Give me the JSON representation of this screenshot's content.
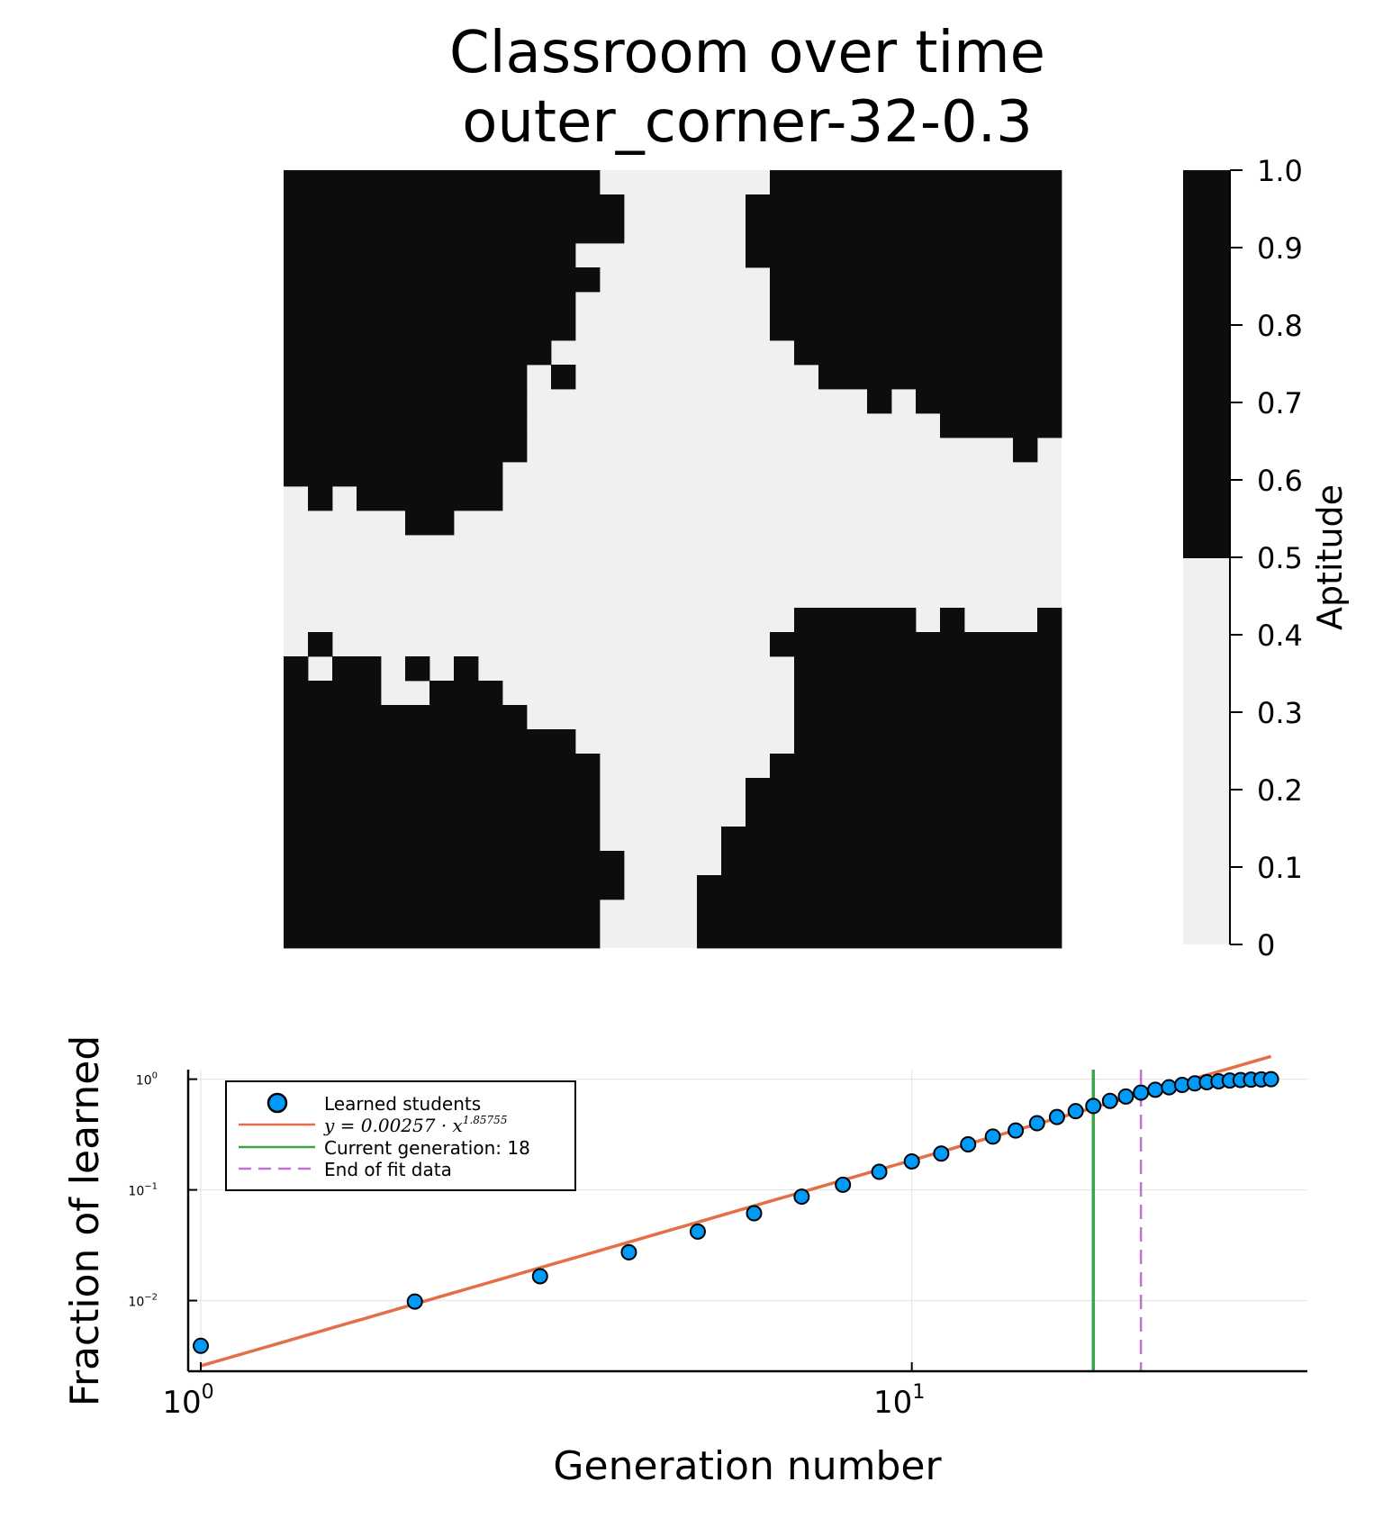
{
  "chart_data": [
    {
      "type": "heatmap",
      "title": "Classroom over time",
      "subtitle": "outer_corner-32-0.3",
      "grid_size": 32,
      "row_order": "top-to-bottom",
      "colors": {
        "low": "#f0f0f0",
        "high": "#0d0d0d",
        "threshold": 0.5
      },
      "colorbar": {
        "label": "Aptitude",
        "range": [
          0,
          1
        ],
        "ticks": [
          "0",
          "0.1",
          "0.2",
          "0.3",
          "0.4",
          "0.5",
          "0.6",
          "0.7",
          "0.8",
          "0.9",
          "1.0"
        ]
      },
      "dark_spans": [
        [
          [
            0,
            12
          ],
          [
            20,
            31
          ]
        ],
        [
          [
            0,
            13
          ],
          [
            19,
            31
          ]
        ],
        [
          [
            0,
            13
          ],
          [
            19,
            31
          ]
        ],
        [
          [
            0,
            11
          ],
          [
            19,
            31
          ]
        ],
        [
          [
            0,
            12
          ],
          [
            20,
            31
          ]
        ],
        [
          [
            0,
            11
          ],
          [
            20,
            31
          ]
        ],
        [
          [
            0,
            11
          ],
          [
            20,
            31
          ]
        ],
        [
          [
            0,
            10
          ],
          [
            21,
            31
          ]
        ],
        [
          [
            0,
            9
          ],
          [
            11,
            11
          ],
          [
            22,
            31
          ]
        ],
        [
          [
            0,
            9
          ],
          [
            24,
            24
          ],
          [
            26,
            31
          ]
        ],
        [
          [
            0,
            9
          ],
          [
            27,
            31
          ]
        ],
        [
          [
            0,
            9
          ],
          [
            30,
            30
          ]
        ],
        [
          [
            0,
            8
          ]
        ],
        [
          [
            1,
            1
          ],
          [
            3,
            8
          ]
        ],
        [
          [
            5,
            6
          ]
        ],
        [],
        [],
        [],
        [
          [
            21,
            25
          ],
          [
            27,
            27
          ],
          [
            31,
            31
          ]
        ],
        [
          [
            1,
            1
          ],
          [
            20,
            31
          ]
        ],
        [
          [
            0,
            0
          ],
          [
            2,
            3
          ],
          [
            5,
            5
          ],
          [
            7,
            7
          ],
          [
            21,
            31
          ]
        ],
        [
          [
            0,
            3
          ],
          [
            6,
            8
          ],
          [
            21,
            31
          ]
        ],
        [
          [
            0,
            9
          ],
          [
            21,
            31
          ]
        ],
        [
          [
            0,
            11
          ],
          [
            21,
            31
          ]
        ],
        [
          [
            0,
            12
          ],
          [
            20,
            31
          ]
        ],
        [
          [
            0,
            12
          ],
          [
            19,
            31
          ]
        ],
        [
          [
            0,
            12
          ],
          [
            19,
            31
          ]
        ],
        [
          [
            0,
            12
          ],
          [
            18,
            31
          ]
        ],
        [
          [
            0,
            13
          ],
          [
            18,
            31
          ]
        ],
        [
          [
            0,
            13
          ],
          [
            17,
            31
          ]
        ],
        [
          [
            0,
            12
          ],
          [
            17,
            31
          ]
        ],
        [
          [
            0,
            12
          ],
          [
            17,
            31
          ]
        ]
      ]
    },
    {
      "type": "scatter",
      "xlabel": "Generation number",
      "ylabel": "Fraction of learned",
      "xscale": "log",
      "yscale": "log",
      "xlim": [
        0.96,
        36
      ],
      "ylim": [
        0.0023,
        1.22
      ],
      "grid": true,
      "legend_position": "top-left",
      "x_ticks": [
        {
          "base": "10",
          "exp": "0",
          "value": 1
        },
        {
          "base": "10",
          "exp": "1",
          "value": 10
        }
      ],
      "y_ticks": [
        {
          "base": "10",
          "exp": "0",
          "value": 1
        },
        {
          "base": "10",
          "exp": "−1",
          "value": 0.1
        },
        {
          "base": "10",
          "exp": "−2",
          "value": 0.01
        }
      ],
      "series": [
        {
          "name": "Learned students",
          "kind": "markers",
          "color": "#009af9",
          "x": [
            1,
            2,
            3,
            4,
            5,
            6,
            7,
            8,
            9,
            10,
            11,
            12,
            13,
            14,
            15,
            16,
            17,
            18,
            19,
            20,
            21,
            22,
            23,
            24,
            25,
            26,
            27,
            28,
            29,
            30,
            31,
            32
          ],
          "y": [
            0.0039,
            0.0098,
            0.0166,
            0.0273,
            0.042,
            0.0615,
            0.0869,
            0.1113,
            0.1455,
            0.1807,
            0.2129,
            0.2578,
            0.3027,
            0.3438,
            0.4004,
            0.4551,
            0.5137,
            0.5723,
            0.6367,
            0.6973,
            0.7559,
            0.8027,
            0.8438,
            0.8867,
            0.916,
            0.9395,
            0.957,
            0.9727,
            0.9824,
            0.9902,
            0.9951,
            1.0
          ]
        },
        {
          "name": "y = 0.00257 · x",
          "name_exponent": "1.85755",
          "kind": "fit-line",
          "color": "#e26f46",
          "coef": 0.00257,
          "power": 1.85755,
          "x_range": [
            1,
            32
          ]
        },
        {
          "name": "Current generation: 18",
          "kind": "vline",
          "color": "#3da44d",
          "x": 18
        },
        {
          "name": "End of fit data",
          "kind": "vline-dashed",
          "color": "#c271d2",
          "x": 21
        }
      ]
    }
  ]
}
